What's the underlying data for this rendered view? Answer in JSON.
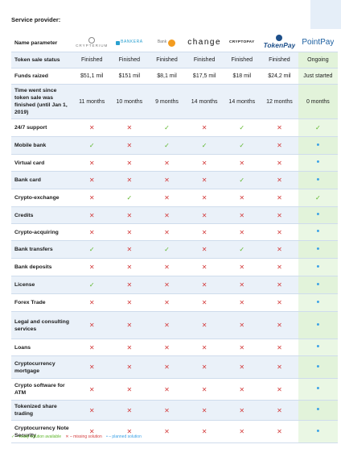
{
  "title": "Service provider:",
  "header_label": "Name parameter",
  "providers": [
    "CRYPTERIUM",
    "BANKERA",
    "Bank",
    "change",
    "CRYPTOPAY",
    "TokenPay",
    "PointPay"
  ],
  "rows": [
    {
      "label": "Token sale status",
      "type": "text",
      "cells": [
        "Finished",
        "Finished",
        "Finished",
        "Finished",
        "Finished",
        "Finished",
        "Ongoing"
      ]
    },
    {
      "label": "Funds raized",
      "type": "text",
      "cells": [
        "$51,1 mil",
        "$151 mil",
        "$8,1 mil",
        "$17,5 mil",
        "$18 mil",
        "$24,2 mil",
        "Just started"
      ]
    },
    {
      "label": "Time went since token sale was finished (until Jan 1, 2019)",
      "type": "text",
      "cells": [
        "11 months",
        "10 months",
        "9 months",
        "14 months",
        "14 months",
        "12 months",
        "0 months"
      ]
    },
    {
      "label": "24/7 support",
      "type": "mark",
      "cells": [
        "x",
        "x",
        "v",
        "x",
        "v",
        "x",
        "v"
      ]
    },
    {
      "label": "Mobile bank",
      "type": "mark",
      "cells": [
        "v",
        "x",
        "v",
        "v",
        "v",
        "x",
        "o"
      ]
    },
    {
      "label": "Virtual card",
      "type": "mark",
      "cells": [
        "x",
        "x",
        "x",
        "x",
        "x",
        "x",
        "o"
      ]
    },
    {
      "label": "Bank card",
      "type": "mark",
      "cells": [
        "x",
        "x",
        "x",
        "x",
        "v",
        "x",
        "o"
      ]
    },
    {
      "label": "Crypto-exchange",
      "type": "mark",
      "cells": [
        "x",
        "v",
        "x",
        "x",
        "x",
        "x",
        "v"
      ]
    },
    {
      "label": "Credits",
      "type": "mark",
      "cells": [
        "x",
        "x",
        "x",
        "x",
        "x",
        "x",
        "o"
      ]
    },
    {
      "label": "Crypto-acquiring",
      "type": "mark",
      "cells": [
        "x",
        "x",
        "x",
        "x",
        "x",
        "x",
        "o"
      ]
    },
    {
      "label": "Bank transfers",
      "type": "mark",
      "cells": [
        "v",
        "x",
        "v",
        "x",
        "v",
        "x",
        "o"
      ]
    },
    {
      "label": "Bank deposits",
      "type": "mark",
      "cells": [
        "x",
        "x",
        "x",
        "x",
        "x",
        "x",
        "o"
      ]
    },
    {
      "label": "License",
      "type": "mark",
      "cells": [
        "v",
        "x",
        "x",
        "x",
        "x",
        "x",
        "o"
      ]
    },
    {
      "label": "Forex Trade",
      "type": "mark",
      "cells": [
        "x",
        "x",
        "x",
        "x",
        "x",
        "x",
        "o"
      ]
    },
    {
      "label": "Legal and consulting services",
      "type": "mark",
      "cells": [
        "x",
        "x",
        "x",
        "x",
        "x",
        "x",
        "o"
      ]
    },
    {
      "label": "Loans",
      "type": "mark",
      "cells": [
        "x",
        "x",
        "x",
        "x",
        "x",
        "x",
        "o"
      ]
    },
    {
      "label": "Cryptocurrency mortgage",
      "type": "mark",
      "cells": [
        "x",
        "x",
        "x",
        "x",
        "x",
        "x",
        "o"
      ]
    },
    {
      "label": "Crypto software for ATM",
      "type": "mark",
      "cells": [
        "x",
        "x",
        "x",
        "x",
        "x",
        "x",
        "o"
      ]
    },
    {
      "label": "Tokenized share trading",
      "type": "mark",
      "cells": [
        "x",
        "x",
        "x",
        "x",
        "x",
        "x",
        "o"
      ]
    },
    {
      "label": "Cryptocurrency Note Security",
      "type": "mark",
      "cells": [
        "x",
        "x",
        "x",
        "x",
        "x",
        "x",
        "o"
      ]
    }
  ],
  "row_heights": [],
  "legend": {
    "ready": "✓ – ready solution available",
    "missing": "✕ – missing solution",
    "planned": "• – planned solution"
  },
  "colors": {
    "check": "#5cb528",
    "cross": "#d33b3b",
    "dot": "#3aa1e6",
    "stripe": "#eaf1f9",
    "highlight": "#eaf7e4"
  }
}
